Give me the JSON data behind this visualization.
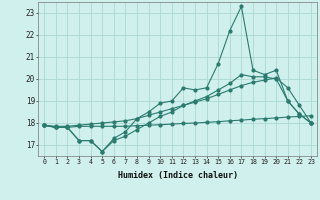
{
  "x": [
    0,
    1,
    2,
    3,
    4,
    5,
    6,
    7,
    8,
    9,
    10,
    11,
    12,
    13,
    14,
    15,
    16,
    17,
    18,
    19,
    20,
    21,
    22,
    23
  ],
  "line_zigzag": [
    17.9,
    17.8,
    17.8,
    17.2,
    17.2,
    16.7,
    17.3,
    17.6,
    18.2,
    18.5,
    18.9,
    19.0,
    19.6,
    19.5,
    19.6,
    20.7,
    22.2,
    23.3,
    20.4,
    20.2,
    20.4,
    19.0,
    18.4,
    18.0
  ],
  "line_smooth": [
    17.9,
    17.8,
    17.8,
    17.2,
    17.2,
    16.7,
    17.2,
    17.4,
    17.7,
    18.0,
    18.3,
    18.5,
    18.8,
    19.0,
    19.2,
    19.5,
    19.8,
    20.2,
    20.1,
    20.1,
    20.0,
    19.0,
    18.4,
    18.0
  ],
  "line_upper": [
    17.9,
    17.85,
    17.85,
    17.9,
    17.95,
    18.0,
    18.05,
    18.1,
    18.2,
    18.35,
    18.5,
    18.65,
    18.8,
    18.95,
    19.1,
    19.3,
    19.5,
    19.7,
    19.85,
    19.95,
    20.05,
    19.6,
    18.8,
    18.0
  ],
  "line_lower": [
    17.9,
    17.8,
    17.8,
    17.85,
    17.85,
    17.85,
    17.85,
    17.85,
    17.88,
    17.9,
    17.92,
    17.95,
    17.98,
    18.0,
    18.03,
    18.06,
    18.1,
    18.13,
    18.17,
    18.2,
    18.23,
    18.27,
    18.3,
    18.33
  ],
  "color": "#2a7b6e",
  "bg_color": "#cff0ec",
  "grid_color": "#aad8d3",
  "xlabel": "Humidex (Indice chaleur)",
  "ylim": [
    16.5,
    23.5
  ],
  "xlim": [
    -0.5,
    23.5
  ],
  "yticks": [
    17,
    18,
    19,
    20,
    21,
    22,
    23
  ],
  "xticks": [
    0,
    1,
    2,
    3,
    4,
    5,
    6,
    7,
    8,
    9,
    10,
    11,
    12,
    13,
    14,
    15,
    16,
    17,
    18,
    19,
    20,
    21,
    22,
    23
  ],
  "xtick_labels": [
    "0",
    "1",
    "2",
    "3",
    "4",
    "5",
    "6",
    "7",
    "8",
    "9",
    "10",
    "11",
    "12",
    "13",
    "14",
    "15",
    "16",
    "17",
    "18",
    "19",
    "20",
    "21",
    "22",
    "23"
  ]
}
